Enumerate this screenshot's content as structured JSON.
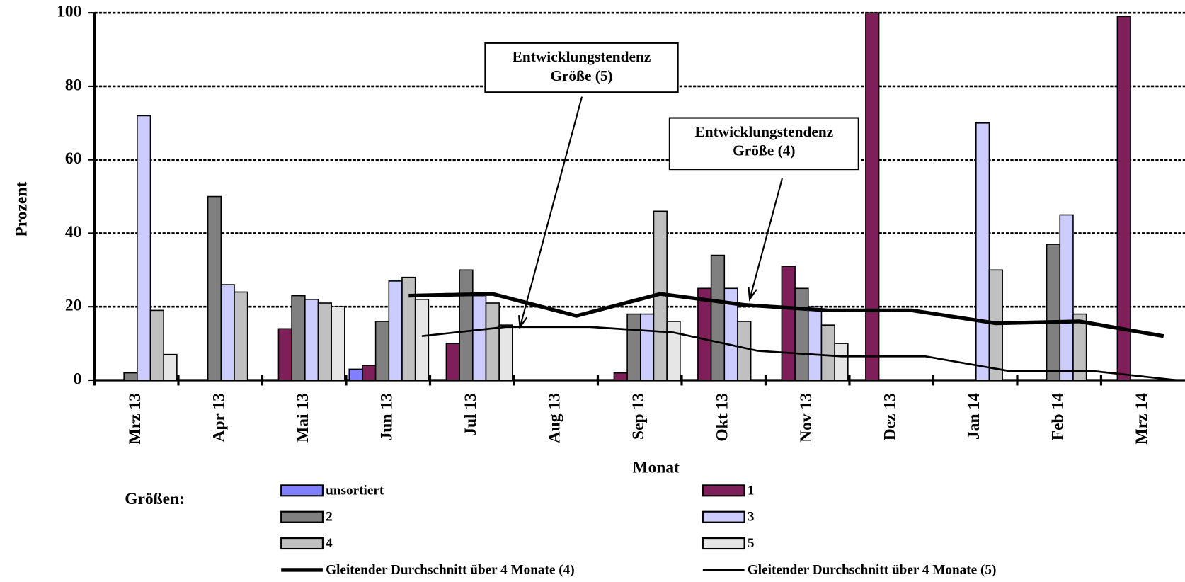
{
  "chart_data": {
    "type": "bar",
    "x_label": "Monat",
    "y_label": "Prozent",
    "legend_title": "Größen:",
    "categories": [
      "Mrz 13",
      "Apr 13",
      "Mai 13",
      "Jun 13",
      "Jul 13",
      "Aug 13",
      "Sep 13",
      "Okt 13",
      "Nov 13",
      "Dez 13",
      "Jan 14",
      "Feb 14",
      "Mrz 14"
    ],
    "ylim": [
      0,
      100
    ],
    "yticks": [
      0,
      20,
      40,
      60,
      80,
      100
    ],
    "grid": true,
    "series": [
      {
        "name": "unsortiert",
        "color": "#8080ff",
        "values": [
          null,
          null,
          null,
          3,
          null,
          null,
          null,
          null,
          null,
          null,
          null,
          null,
          null
        ]
      },
      {
        "name": "1",
        "color": "#7f1f5a",
        "values": [
          null,
          null,
          14,
          4,
          10,
          null,
          2,
          25,
          31,
          100,
          null,
          null,
          99
        ]
      },
      {
        "name": "2",
        "color": "#808080",
        "values": [
          2,
          50,
          23,
          16,
          30,
          null,
          18,
          34,
          25,
          null,
          null,
          37,
          null
        ]
      },
      {
        "name": "3",
        "color": "#ccccff",
        "values": [
          72,
          26,
          22,
          27,
          23,
          null,
          18,
          25,
          20,
          null,
          70,
          45,
          null
        ]
      },
      {
        "name": "4",
        "color": "#c0c0c0",
        "values": [
          19,
          24,
          21,
          28,
          21,
          null,
          46,
          16,
          15,
          null,
          30,
          18,
          null
        ]
      },
      {
        "name": "5",
        "color": "#e6e6e6",
        "values": [
          7,
          null,
          20,
          22,
          15,
          null,
          16,
          null,
          10,
          null,
          null,
          null,
          null
        ]
      },
      {
        "name": "Gleitender Durchschnitt über  4 Monate (4)",
        "type": "line",
        "line_width": 5,
        "color": "#000000",
        "values": [
          null,
          null,
          null,
          23,
          23.5,
          17.5,
          23.5,
          20.5,
          19,
          19,
          15.5,
          16,
          12
        ]
      },
      {
        "name": "Gleitender Durchschnitt über  4 Monate (5)",
        "type": "line",
        "line_width": 2.5,
        "color": "#000000",
        "values": [
          null,
          null,
          null,
          12,
          14.5,
          14.5,
          13,
          8,
          6.5,
          6.5,
          2.5,
          2.5,
          0
        ]
      }
    ],
    "annotations": [
      {
        "lines": [
          "Entwicklungstendenz",
          "Größe  (5)"
        ]
      },
      {
        "lines": [
          "Entwicklungstendenz",
          "Größe  (4)"
        ]
      }
    ]
  }
}
